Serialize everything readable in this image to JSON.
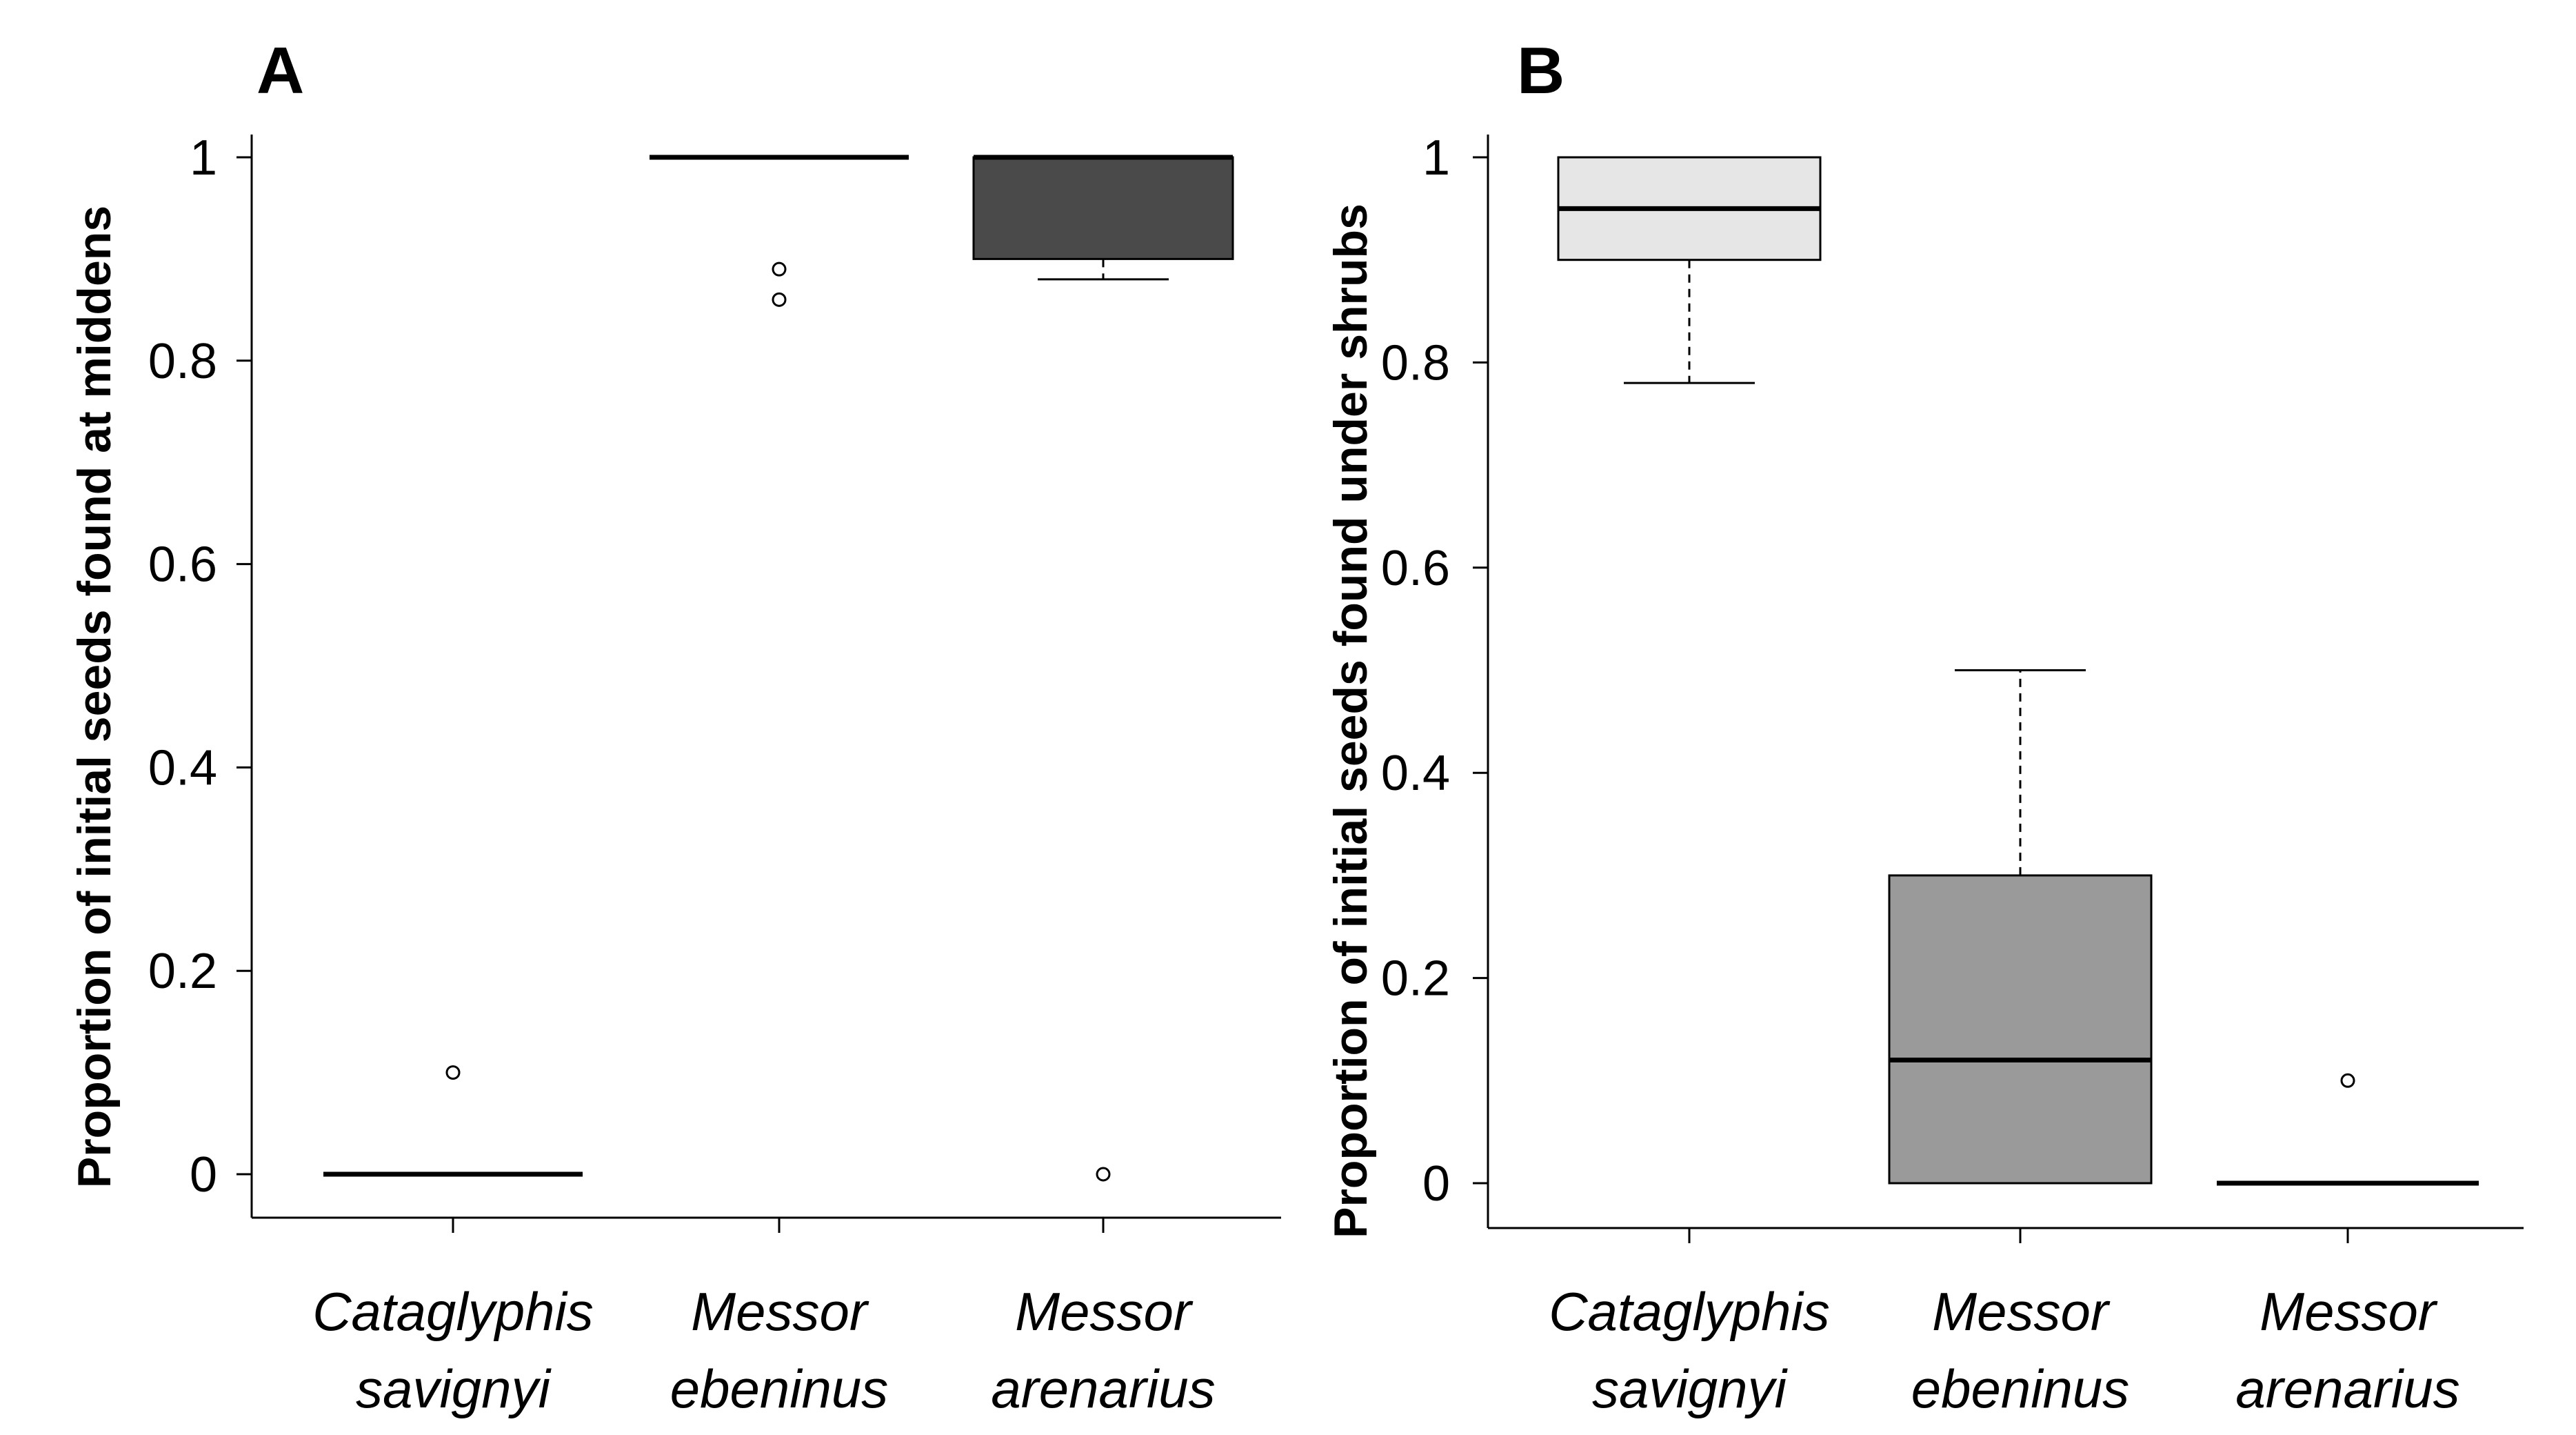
{
  "chart_data": [
    {
      "panel": "A",
      "type": "box",
      "ylabel": "Proportion of initial seeds found at middens",
      "ylim": [
        0,
        1
      ],
      "yticks": [
        "0",
        "0.2",
        "0.4",
        "0.6",
        "0.8",
        "1"
      ],
      "categories": [
        {
          "line1": "Cataglyphis",
          "line2": "savignyi"
        },
        {
          "line1": "Messor",
          "line2": "ebeninus"
        },
        {
          "line1": "Messor",
          "line2": "arenarius"
        }
      ],
      "boxes": [
        {
          "q1": 0,
          "median": 0,
          "q3": 0,
          "whisker_low": 0,
          "whisker_high": 0,
          "outliers": [
            0.1
          ],
          "fill": "#ffffff"
        },
        {
          "q1": 1,
          "median": 1,
          "q3": 1,
          "whisker_low": 1,
          "whisker_high": 1,
          "outliers": [
            0.89,
            0.86
          ],
          "fill": "#ffffff"
        },
        {
          "q1": 0.9,
          "median": 1,
          "q3": 1,
          "whisker_low": 0.88,
          "whisker_high": 1,
          "outliers": [
            0
          ],
          "fill": "#4a4a4a"
        }
      ]
    },
    {
      "panel": "B",
      "type": "box",
      "ylabel": "Proportion of initial seeds found under shrubs",
      "ylim": [
        0,
        1
      ],
      "yticks": [
        "0",
        "0.2",
        "0.4",
        "0.6",
        "0.8",
        "1"
      ],
      "categories": [
        {
          "line1": "Cataglyphis",
          "line2": "savignyi"
        },
        {
          "line1": "Messor",
          "line2": "ebeninus"
        },
        {
          "line1": "Messor",
          "line2": "arenarius"
        }
      ],
      "boxes": [
        {
          "q1": 0.9,
          "median": 0.95,
          "q3": 1,
          "whisker_low": 0.78,
          "whisker_high": 1,
          "outliers": [],
          "fill": "#e6e6e6"
        },
        {
          "q1": 0,
          "median": 0.12,
          "q3": 0.3,
          "whisker_low": 0,
          "whisker_high": 0.5,
          "outliers": [],
          "fill": "#9a9a9a"
        },
        {
          "q1": 0,
          "median": 0,
          "q3": 0,
          "whisker_low": 0,
          "whisker_high": 0,
          "outliers": [
            0.1
          ],
          "fill": "#ffffff"
        }
      ]
    }
  ]
}
